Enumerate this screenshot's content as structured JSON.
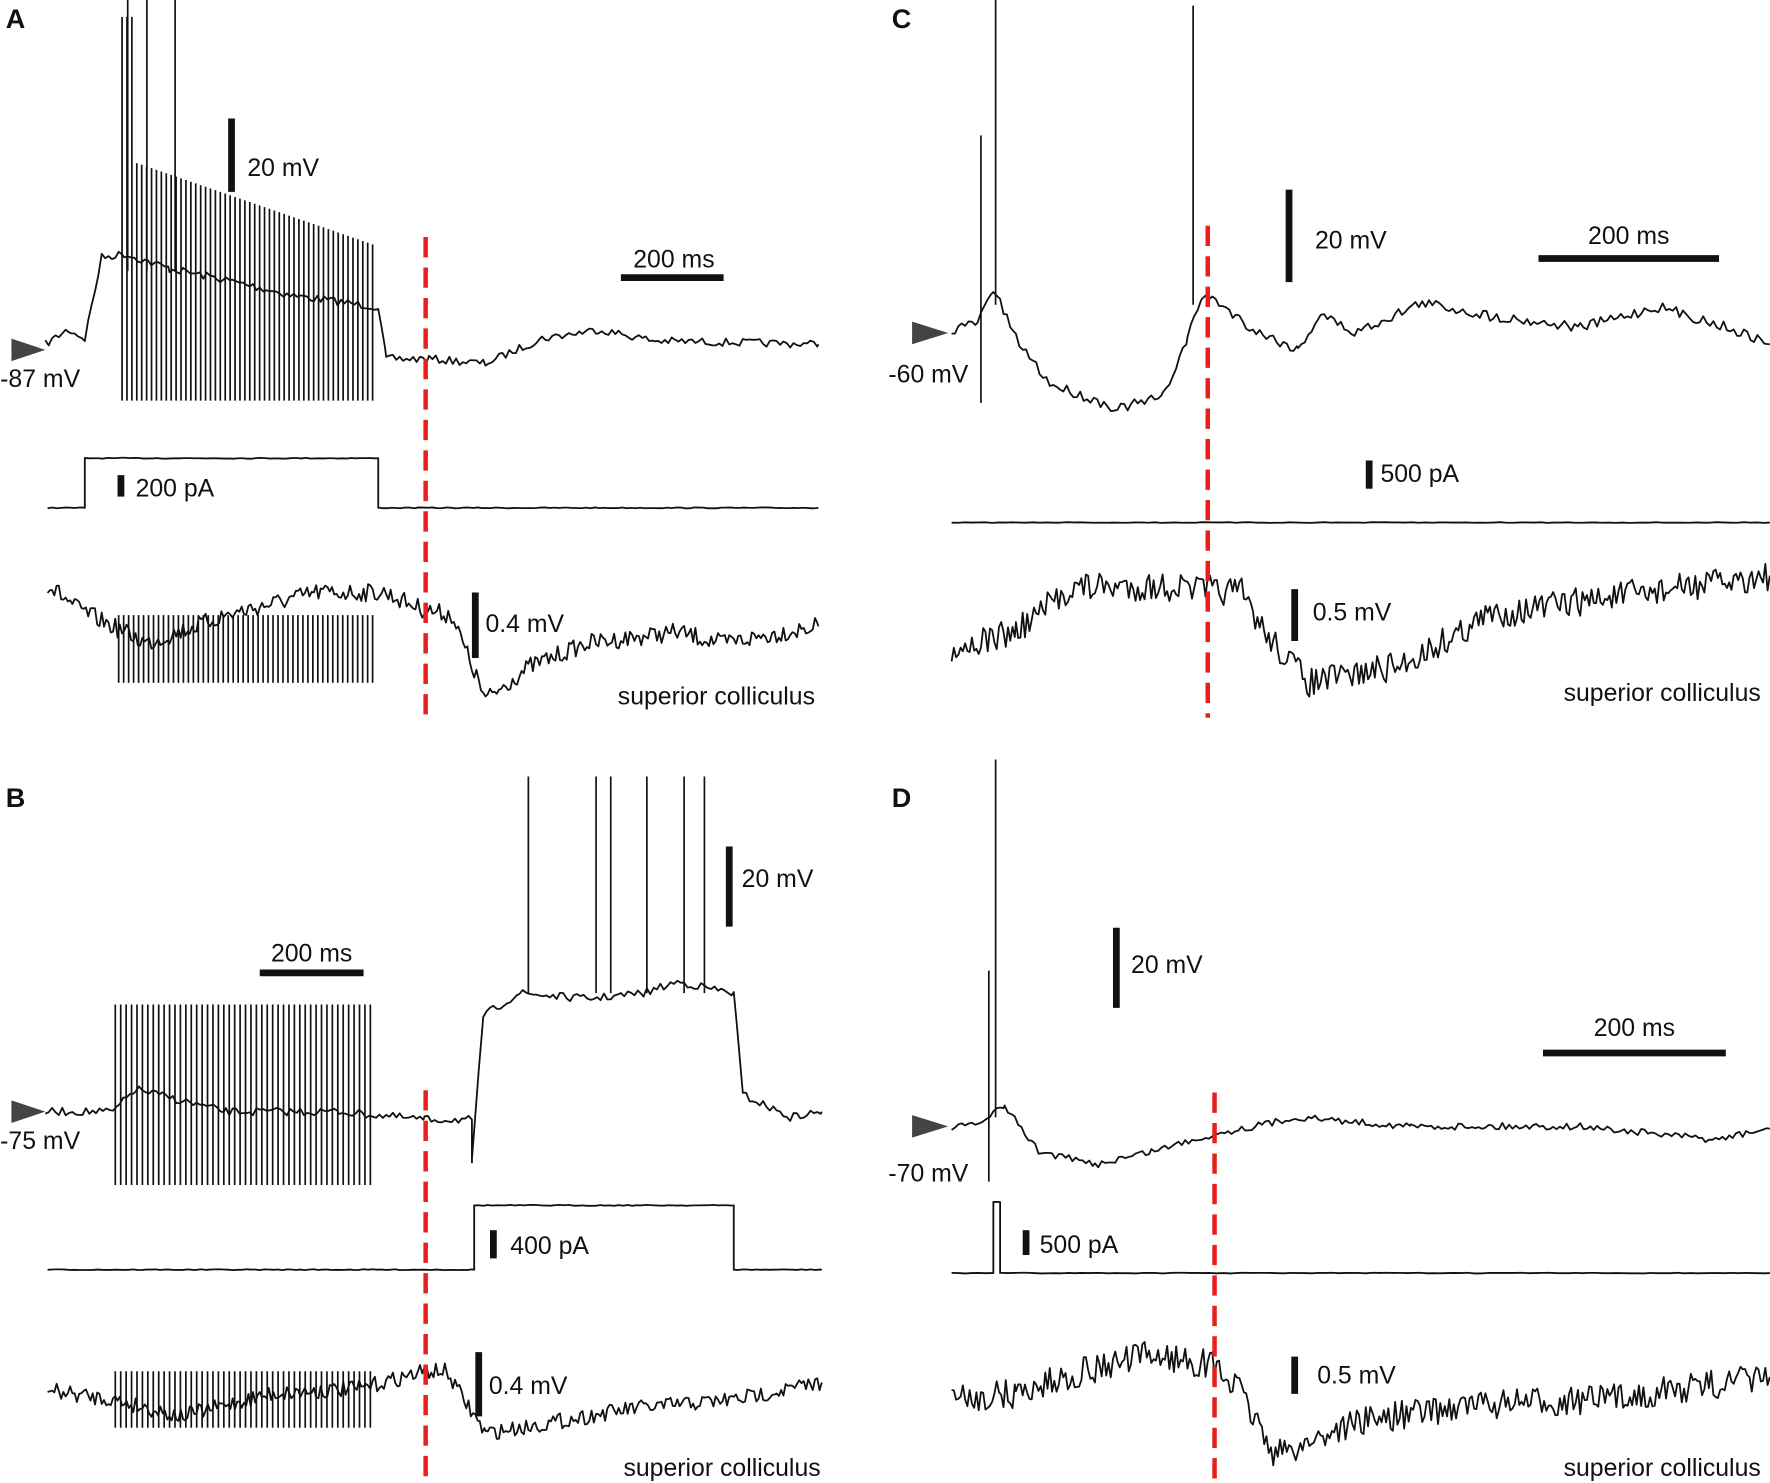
{
  "panels": [
    {
      "label": "A",
      "resting": "-87 mV",
      "voltage_scale": "20 mV",
      "time_scale": "200 ms",
      "current_scale": "200 pA",
      "field_scale": "0.4 mV",
      "region": "superior colliculus"
    },
    {
      "label": "B",
      "resting": "-75 mV",
      "voltage_scale": "20 mV",
      "time_scale": "200 ms",
      "current_scale": "400 pA",
      "field_scale": "0.4 mV",
      "region": "superior colliculus"
    },
    {
      "label": "C",
      "resting": "-60 mV",
      "voltage_scale": "20 mV",
      "time_scale": "200 ms",
      "current_scale": "500 pA",
      "field_scale": "0.5 mV",
      "region": "superior colliculus"
    },
    {
      "label": "D",
      "resting": "-70 mV",
      "voltage_scale": "20 mV",
      "time_scale": "200 ms",
      "current_scale": "500 pA",
      "field_scale": "0.5 mV",
      "region": "superior colliculus"
    }
  ]
}
